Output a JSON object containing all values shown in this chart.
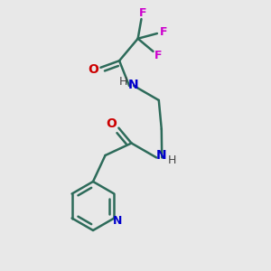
{
  "background_color": "#e8e8e8",
  "bond_color": "#2d6b5a",
  "N_color": "#0000cc",
  "O_color": "#cc0000",
  "F_color": "#cc00cc",
  "bond_width": 1.5,
  "figsize": [
    3.0,
    3.0
  ],
  "dpi": 100,
  "xlim": [
    0,
    300
  ],
  "ylim": [
    0,
    300
  ]
}
